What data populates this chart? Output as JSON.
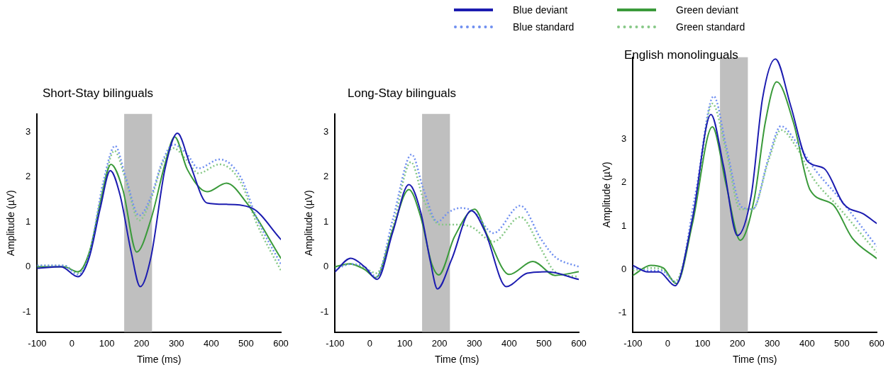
{
  "chart_data": [
    {
      "type": "line",
      "title": "Short-Stay bilinguals",
      "xlabel": "Time (ms)",
      "ylabel": "Amplitude (µV)",
      "legend": "top",
      "xlim": [
        -100,
        600
      ],
      "xticks": [
        -100,
        0,
        100,
        200,
        300,
        400,
        500,
        600
      ],
      "ylim": [
        -1.45,
        3.4
      ],
      "yticks": [
        -1,
        0,
        1,
        2,
        3
      ],
      "bands": [
        {
          "axis": "x",
          "from": 150,
          "to": 230,
          "color": "#bfbfbf"
        }
      ],
      "series": [
        {
          "name": "Blue deviant",
          "color": "#1c1cb0",
          "line_style": "solid",
          "x": [
            -100,
            -31,
            17,
            50,
            82,
            110,
            138,
            170,
            196,
            227,
            267,
            303,
            339,
            388,
            444,
            516,
            600
          ],
          "values": [
            -0.03,
            0,
            -0.22,
            0.22,
            1.33,
            2.14,
            1.6,
            0.33,
            -0.44,
            0.22,
            2.17,
            2.97,
            2.28,
            1.42,
            1.39,
            1.31,
            0.61
          ]
        },
        {
          "name": "Blue standard",
          "color": "#6f8ff0",
          "line_style": "dotted",
          "x": [
            -100,
            -23,
            17,
            50,
            90,
            124,
            154,
            193,
            227,
            259,
            291,
            331,
            363,
            424,
            484,
            532,
            600
          ],
          "values": [
            0.03,
            0.03,
            -0.17,
            0.28,
            1.89,
            2.69,
            2.0,
            1.14,
            1.56,
            2.33,
            2.72,
            2.5,
            2.19,
            2.39,
            2.0,
            1.06,
            0.06
          ]
        },
        {
          "name": "Green deviant",
          "color": "#3a9a3a",
          "line_style": "solid",
          "x": [
            -100,
            -23,
            17,
            50,
            82,
            112,
            146,
            186,
            227,
            267,
            295,
            331,
            388,
            444,
            500,
            600
          ],
          "values": [
            0,
            0,
            -0.11,
            0.33,
            1.44,
            2.28,
            1.72,
            0.33,
            1.06,
            2.28,
            2.89,
            2.17,
            1.67,
            1.86,
            1.44,
            0.19
          ]
        },
        {
          "name": "Green standard",
          "color": "#86c886",
          "line_style": "dotted",
          "x": [
            -100,
            -23,
            17,
            50,
            90,
            122,
            154,
            193,
            227,
            259,
            291,
            331,
            363,
            424,
            484,
            532,
            600
          ],
          "values": [
            0.03,
            0.03,
            -0.14,
            0.28,
            1.78,
            2.58,
            1.94,
            1.03,
            1.5,
            2.28,
            2.64,
            2.36,
            2.08,
            2.28,
            1.89,
            0.94,
            -0.08
          ]
        }
      ]
    },
    {
      "type": "line",
      "title": "Long-Stay bilinguals",
      "xlabel": "Time (ms)",
      "ylabel": "Amplitude (µV)",
      "xlim": [
        -100,
        600
      ],
      "xticks": [
        -100,
        0,
        100,
        200,
        300,
        400,
        500,
        600
      ],
      "ylim": [
        -1.45,
        3.4
      ],
      "yticks": [
        -1,
        0,
        1,
        2,
        3
      ],
      "bands": [
        {
          "axis": "x",
          "from": 150,
          "to": 230,
          "color": "#bfbfbf"
        }
      ],
      "series": [
        {
          "color": "#1c1cb0",
          "line_style": "solid",
          "x": [
            -100,
            -55,
            -15,
            21,
            66,
            112,
            146,
            174,
            194,
            235,
            291,
            331,
            392,
            452,
            508,
            600
          ],
          "values": [
            -0.11,
            0.19,
            0,
            -0.28,
            0.78,
            1.83,
            1.22,
            0.11,
            -0.49,
            0.17,
            1.25,
            0.78,
            -0.44,
            -0.14,
            -0.11,
            -0.28
          ]
        },
        {
          "color": "#6f8ff0",
          "line_style": "dotted",
          "x": [
            -100,
            -55,
            -15,
            19,
            66,
            120,
            154,
            194,
            227,
            263,
            299,
            355,
            432,
            492,
            532,
            600
          ],
          "values": [
            -0.06,
            0.06,
            0,
            -0.22,
            1.06,
            2.5,
            1.72,
            1.0,
            1.22,
            1.31,
            1.22,
            0.75,
            1.36,
            0.61,
            0.22,
            0
          ]
        },
        {
          "color": "#3a9a3a",
          "line_style": "solid",
          "x": [
            -100,
            -59,
            -15,
            17,
            66,
            112,
            146,
            178,
            198,
            243,
            301,
            339,
            400,
            468,
            532,
            600
          ],
          "values": [
            0,
            0.07,
            -0.06,
            -0.24,
            0.83,
            1.72,
            1.11,
            0.06,
            -0.18,
            0.67,
            1.28,
            0.67,
            -0.17,
            0.12,
            -0.19,
            -0.11
          ]
        },
        {
          "color": "#86c886",
          "line_style": "dotted",
          "x": [
            -100,
            -55,
            -15,
            19,
            66,
            118,
            154,
            202,
            243,
            291,
            355,
            432,
            492,
            532,
            600
          ],
          "values": [
            0,
            0.06,
            -0.03,
            -0.14,
            0.89,
            2.33,
            1.5,
            0.94,
            0.94,
            0.89,
            0.56,
            1.11,
            0.39,
            -0.11,
            -0.22
          ]
        }
      ]
    },
    {
      "type": "line",
      "title": "English monolinguals",
      "xlabel": "Time (ms)",
      "ylabel": "Amplitude (µV)",
      "xlim": [
        -100,
        600
      ],
      "xticks": [
        -100,
        0,
        100,
        200,
        300,
        400,
        500,
        600
      ],
      "ylim": [
        -1.45,
        4.9
      ],
      "yticks": [
        -1,
        0,
        1,
        2,
        3
      ],
      "bands": [
        {
          "axis": "x",
          "from": 150,
          "to": 230,
          "color": "#bfbfbf"
        }
      ],
      "series": [
        {
          "color": "#1c1cb0",
          "line_style": "solid",
          "x": [
            -100,
            -57,
            -25,
            21,
            71,
            124,
            160,
            200,
            240,
            272,
            309,
            353,
            401,
            449,
            506,
            562,
            600
          ],
          "values": [
            0.09,
            -0.06,
            -0.06,
            -0.38,
            1.17,
            3.58,
            2.39,
            0.78,
            1.72,
            3.94,
            4.86,
            3.78,
            2.5,
            2.33,
            1.5,
            1.28,
            1.06
          ]
        },
        {
          "color": "#6f8ff0",
          "line_style": "dotted",
          "x": [
            -100,
            -51,
            -19,
            25,
            79,
            132,
            168,
            212,
            244,
            289,
            325,
            369,
            425,
            490,
            600
          ],
          "values": [
            0.03,
            -0.03,
            -0.03,
            -0.31,
            1.72,
            4.0,
            2.83,
            1.44,
            1.39,
            2.56,
            3.31,
            2.94,
            2.28,
            1.67,
            0.53
          ]
        },
        {
          "color": "#3a9a3a",
          "line_style": "solid",
          "x": [
            -100,
            -49,
            -13,
            25,
            71,
            128,
            168,
            208,
            248,
            280,
            313,
            361,
            409,
            474,
            530,
            600
          ],
          "values": [
            -0.14,
            0.09,
            0.03,
            -0.33,
            1.06,
            3.29,
            1.94,
            0.67,
            1.61,
            3.39,
            4.33,
            3.39,
            1.83,
            1.5,
            0.72,
            0.25
          ]
        },
        {
          "color": "#86c886",
          "line_style": "dotted",
          "x": [
            -100,
            -51,
            -15,
            21,
            79,
            128,
            168,
            208,
            244,
            289,
            325,
            369,
            417,
            490,
            600
          ],
          "values": [
            -0.03,
            0.03,
            0,
            -0.28,
            1.5,
            3.83,
            2.72,
            1.39,
            1.39,
            2.5,
            3.22,
            2.83,
            2.11,
            1.44,
            0.39
          ]
        }
      ]
    }
  ]
}
